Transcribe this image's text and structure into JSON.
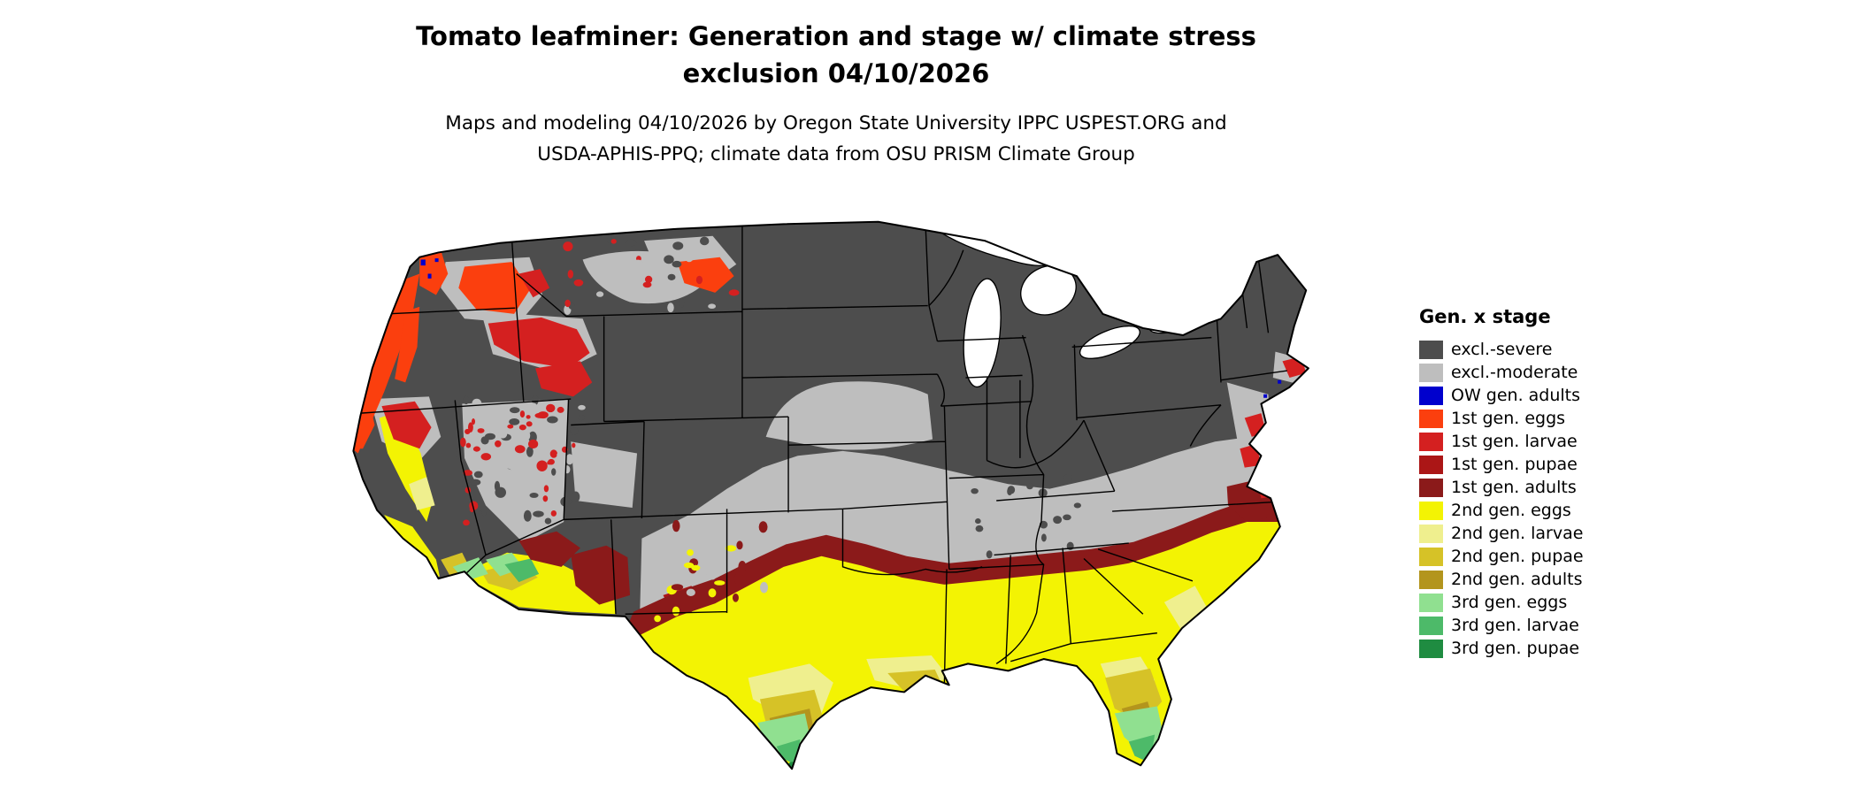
{
  "title": {
    "line1": "Tomato leafminer: Generation and stage w/ climate stress",
    "line2": "exclusion 04/10/2026"
  },
  "subtitle": {
    "line1": "Maps and modeling 04/10/2026 by Oregon State University IPPC USPEST.ORG and",
    "line2": "USDA-APHIS-PPQ; climate data from OSU PRISM Climate Group"
  },
  "legend": {
    "title": "Gen. x stage",
    "items": [
      {
        "key": "excl_severe",
        "label": "excl.-severe",
        "color": "#4d4d4d"
      },
      {
        "key": "excl_moderate",
        "label": "excl.-moderate",
        "color": "#bebebe"
      },
      {
        "key": "ow_adults",
        "label": "OW gen. adults",
        "color": "#0000cd"
      },
      {
        "key": "g1_eggs",
        "label": "1st gen. eggs",
        "color": "#fb3f0e"
      },
      {
        "key": "g1_larvae",
        "label": "1st gen. larvae",
        "color": "#d42020"
      },
      {
        "key": "g1_pupae",
        "label": "1st gen. pupae",
        "color": "#ab1616"
      },
      {
        "key": "g1_adults",
        "label": "1st gen. adults",
        "color": "#8b1a1a"
      },
      {
        "key": "g2_eggs",
        "label": "2nd gen. eggs",
        "color": "#f3f303"
      },
      {
        "key": "g2_larvae",
        "label": "2nd gen. larvae",
        "color": "#efef8e"
      },
      {
        "key": "g2_pupae",
        "label": "2nd gen. pupae",
        "color": "#d6c227"
      },
      {
        "key": "g2_adults",
        "label": "2nd gen. adults",
        "color": "#b3951d"
      },
      {
        "key": "g3_eggs",
        "label": "3rd gen. eggs",
        "color": "#90e090"
      },
      {
        "key": "g3_larvae",
        "label": "3rd gen. larvae",
        "color": "#4dba69"
      },
      {
        "key": "g3_pupae",
        "label": "3rd gen. pupae",
        "color": "#1f8c41"
      }
    ]
  },
  "map": {
    "outline_color": "#000000",
    "water_color": "#ffffff"
  }
}
